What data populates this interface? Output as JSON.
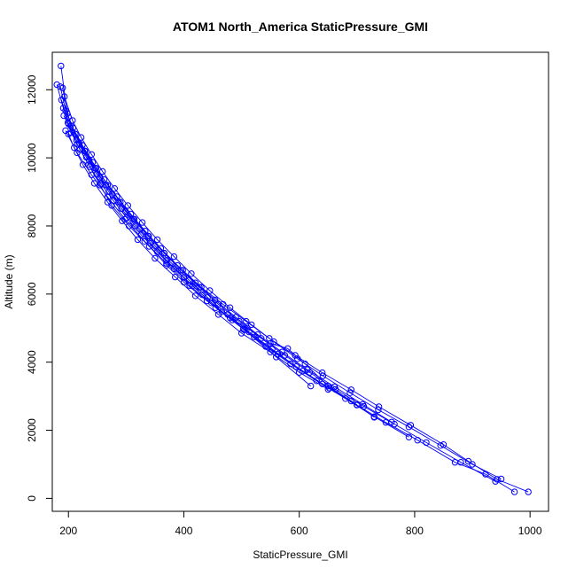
{
  "chart_data": {
    "type": "scatter",
    "title": "ATOM1 North_America StaticPressure_GMI",
    "xlabel": "StaticPressure_GMI",
    "ylabel": "Altitude (m)",
    "xlim": [
      172,
      1032
    ],
    "ylim": [
      -380,
      13100
    ],
    "xticks": [
      200,
      400,
      600,
      800,
      1000
    ],
    "yticks": [
      0,
      2000,
      4000,
      6000,
      8000,
      10000,
      12000
    ],
    "color": "#0000ff",
    "marker": "open-circle",
    "connected": true,
    "series": [
      {
        "points": [
          [
            997,
            190
          ],
          [
            943,
            560
          ],
          [
            893,
            1090
          ],
          [
            850,
            1580
          ],
          [
            793,
            2150
          ],
          [
            738,
            2690
          ],
          [
            690,
            3190
          ],
          [
            640,
            3690
          ],
          [
            593,
            4200
          ],
          [
            548,
            4700
          ],
          [
            508,
            5200
          ],
          [
            468,
            5700
          ],
          [
            430,
            6200
          ],
          [
            398,
            6700
          ],
          [
            366,
            7200
          ],
          [
            338,
            7700
          ],
          [
            312,
            8200
          ],
          [
            287,
            8700
          ],
          [
            265,
            9200
          ],
          [
            246,
            9700
          ],
          [
            228,
            10200
          ],
          [
            212,
            10700
          ],
          [
            200,
            11200
          ],
          [
            190,
            12050
          ]
        ]
      },
      {
        "points": [
          [
            973,
            190
          ],
          [
            923,
            710
          ],
          [
            870,
            1060
          ],
          [
            805,
            1710
          ],
          [
            750,
            2230
          ],
          [
            700,
            2740
          ],
          [
            652,
            3240
          ],
          [
            606,
            3740
          ],
          [
            563,
            4240
          ],
          [
            522,
            4740
          ],
          [
            484,
            5240
          ],
          [
            448,
            5740
          ],
          [
            415,
            6240
          ],
          [
            383,
            6740
          ],
          [
            354,
            7240
          ],
          [
            326,
            7740
          ],
          [
            301,
            8240
          ],
          [
            278,
            8740
          ],
          [
            256,
            9240
          ],
          [
            237,
            9740
          ],
          [
            220,
            10240
          ],
          [
            205,
            10740
          ],
          [
            192,
            11240
          ]
        ]
      },
      {
        "points": [
          [
            950,
            570
          ],
          [
            900,
            1000
          ],
          [
            845,
            1550
          ],
          [
            790,
            2100
          ],
          [
            737,
            2600
          ],
          [
            688,
            3100
          ],
          [
            641,
            3600
          ],
          [
            597,
            4100
          ],
          [
            556,
            4600
          ],
          [
            517,
            5100
          ],
          [
            480,
            5600
          ],
          [
            445,
            6100
          ],
          [
            413,
            6600
          ],
          [
            383,
            7100
          ],
          [
            354,
            7600
          ],
          [
            328,
            8100
          ],
          [
            303,
            8600
          ],
          [
            280,
            9100
          ],
          [
            259,
            9600
          ],
          [
            240,
            10100
          ],
          [
            222,
            10600
          ],
          [
            207,
            11100
          ],
          [
            193,
            11800
          ]
        ]
      },
      {
        "points": [
          [
            940,
            500
          ],
          [
            880,
            1060
          ],
          [
            820,
            1640
          ],
          [
            765,
            2180
          ],
          [
            712,
            2700
          ],
          [
            663,
            3200
          ],
          [
            618,
            3700
          ],
          [
            575,
            4200
          ],
          [
            534,
            4700
          ],
          [
            496,
            5200
          ],
          [
            460,
            5700
          ],
          [
            427,
            6200
          ],
          [
            395,
            6700
          ],
          [
            366,
            7200
          ],
          [
            339,
            7700
          ],
          [
            314,
            8200
          ],
          [
            290,
            8700
          ],
          [
            268,
            9200
          ],
          [
            248,
            9700
          ],
          [
            229,
            10200
          ],
          [
            212,
            10700
          ],
          [
            198,
            11300
          ],
          [
            187,
            12700
          ]
        ]
      },
      {
        "points": [
          [
            760,
            2240
          ],
          [
            710,
            2760
          ],
          [
            661,
            3280
          ],
          [
            614,
            3780
          ],
          [
            570,
            4300
          ],
          [
            528,
            4810
          ],
          [
            490,
            5320
          ],
          [
            454,
            5830
          ],
          [
            420,
            6330
          ],
          [
            389,
            6840
          ],
          [
            360,
            7340
          ],
          [
            333,
            7850
          ],
          [
            308,
            8350
          ],
          [
            284,
            8860
          ],
          [
            262,
            9360
          ],
          [
            242,
            9870
          ],
          [
            224,
            10370
          ],
          [
            208,
            10880
          ],
          [
            195,
            11390
          ],
          [
            186,
            12090
          ]
        ]
      },
      {
        "points": [
          [
            730,
            2380
          ],
          [
            690,
            2860
          ],
          [
            640,
            3360
          ],
          [
            595,
            3870
          ],
          [
            553,
            4380
          ],
          [
            513,
            4890
          ],
          [
            476,
            5400
          ],
          [
            441,
            5900
          ],
          [
            409,
            6410
          ],
          [
            378,
            6920
          ],
          [
            350,
            7420
          ],
          [
            323,
            7920
          ],
          [
            299,
            8430
          ],
          [
            276,
            8930
          ],
          [
            255,
            9430
          ],
          [
            236,
            9930
          ],
          [
            219,
            10430
          ],
          [
            204,
            10940
          ],
          [
            191,
            11460
          ],
          [
            180,
            12150
          ]
        ]
      },
      {
        "points": [
          [
            790,
            1800
          ],
          [
            730,
            2400
          ],
          [
            680,
            2930
          ],
          [
            630,
            3450
          ],
          [
            585,
            3950
          ],
          [
            542,
            4460
          ],
          [
            503,
            4970
          ],
          [
            466,
            5480
          ],
          [
            432,
            5980
          ],
          [
            400,
            6490
          ],
          [
            370,
            6990
          ],
          [
            342,
            7500
          ],
          [
            316,
            8000
          ],
          [
            292,
            8510
          ],
          [
            270,
            9010
          ],
          [
            249,
            9520
          ],
          [
            231,
            10020
          ],
          [
            214,
            10520
          ],
          [
            199,
            11030
          ],
          [
            188,
            11700
          ]
        ]
      },
      {
        "points": [
          [
            620,
            3300
          ],
          [
            560,
            4150
          ],
          [
            505,
            4950
          ],
          [
            455,
            5600
          ],
          [
            410,
            6250
          ],
          [
            370,
            6900
          ],
          [
            332,
            7550
          ],
          [
            298,
            8200
          ],
          [
            268,
            8850
          ],
          [
            240,
            9500
          ],
          [
            215,
            10150
          ],
          [
            195,
            10800
          ]
        ]
      },
      {
        "points": [
          [
            700,
            2750
          ],
          [
            650,
            3300
          ],
          [
            610,
            3950
          ],
          [
            580,
            4400
          ],
          [
            550,
            4550
          ],
          [
            510,
            5000
          ],
          [
            480,
            5300
          ],
          [
            440,
            5800
          ],
          [
            400,
            6350
          ],
          [
            370,
            6850
          ],
          [
            340,
            7400
          ],
          [
            305,
            8000
          ],
          [
            275,
            8600
          ],
          [
            255,
            9200
          ],
          [
            235,
            9800
          ],
          [
            215,
            10400
          ],
          [
            200,
            11000
          ]
        ]
      },
      {
        "points": [
          [
            650,
            3200
          ],
          [
            600,
            3700
          ],
          [
            550,
            4300
          ],
          [
            500,
            4850
          ],
          [
            460,
            5400
          ],
          [
            420,
            5950
          ],
          [
            385,
            6500
          ],
          [
            350,
            7050
          ],
          [
            320,
            7600
          ],
          [
            293,
            8150
          ],
          [
            268,
            8700
          ],
          [
            245,
            9250
          ],
          [
            225,
            9800
          ],
          [
            210,
            10300
          ],
          [
            200,
            10700
          ]
        ]
      }
    ]
  }
}
